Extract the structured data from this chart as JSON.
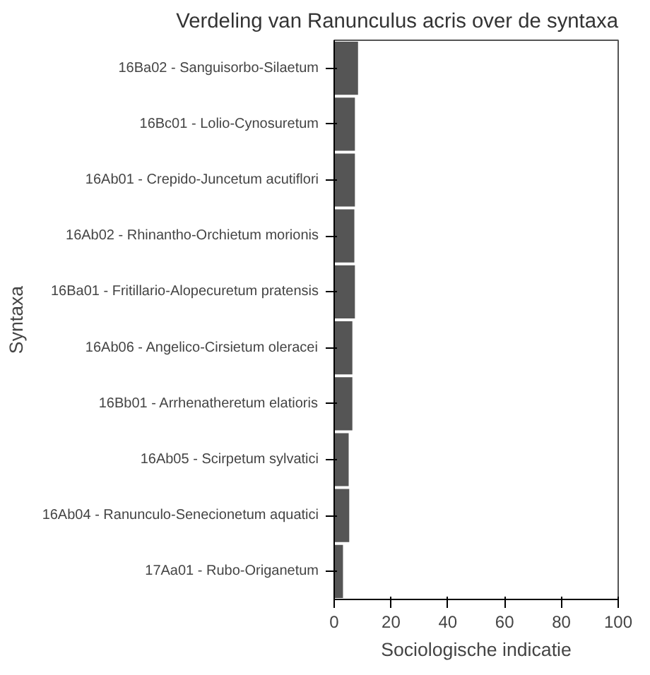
{
  "chart_data": {
    "type": "bar",
    "orientation": "horizontal",
    "title": "Verdeling van Ranunculus acris over de syntaxa",
    "xlabel": "Sociologische indicatie",
    "ylabel": "Syntaxa",
    "categories": [
      "16Ba02 - Sanguisorbo-Silaetum",
      "16Bc01 - Lolio-Cynosuretum",
      "16Ab01 - Crepido-Juncetum acutiflori",
      "16Ab02 - Rhinantho-Orchietum morionis",
      "16Ba01 - Fritillario-Alopecuretum pratensis",
      "16Ab06 - Angelico-Cirsietum oleracei",
      "16Bb01 - Arrhenatheretum elatioris",
      "16Ab05 - Scirpetum sylvatici",
      "16Ab04 - Ranunculo-Senecionetum aquatici",
      "17Aa01 - Rubo-Origanetum"
    ],
    "values": [
      8.4,
      7.3,
      7.3,
      7.1,
      7.3,
      6.4,
      6.4,
      5.1,
      5.3,
      3.1
    ],
    "color": "#555555",
    "xlim": [
      0,
      100
    ],
    "xticks": [
      0,
      20,
      40,
      60,
      80,
      100
    ],
    "grid": false
  }
}
